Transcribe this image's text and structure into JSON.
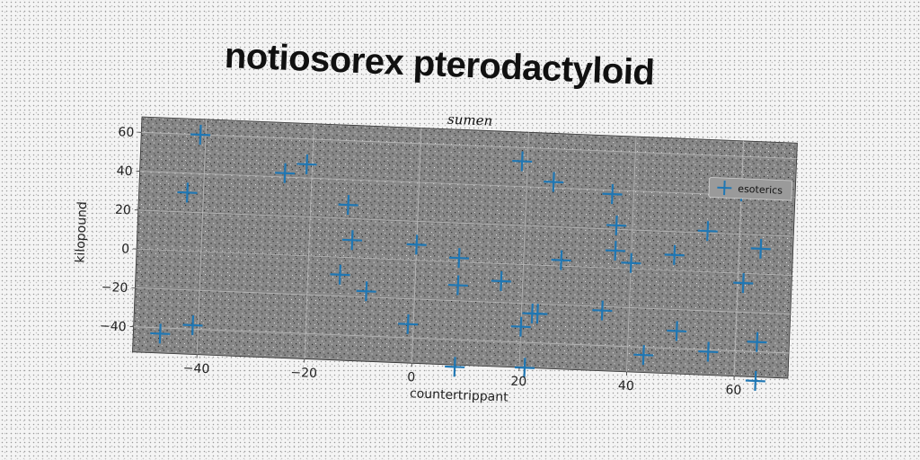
{
  "title": "notiosorex pterodactyloid",
  "chart_data": {
    "type": "scatter",
    "subtitle": "sumen",
    "xlabel": "countertrippant",
    "ylabel": "kilopound",
    "xlim": [
      -52,
      70
    ],
    "ylim": [
      -53,
      68
    ],
    "xticks": [
      -40,
      -20,
      0,
      20,
      40,
      60
    ],
    "yticks": [
      -40,
      -20,
      0,
      20,
      40,
      60
    ],
    "xtick_labels": [
      "−40",
      "−20",
      "0",
      "20",
      "40",
      "60"
    ],
    "ytick_labels": [
      "−40",
      "−20",
      "0",
      "20",
      "40",
      "60"
    ],
    "grid": true,
    "legend": "top-right",
    "series": [
      {
        "name": "esoterics",
        "color": "#1f77b4",
        "marker": "plus",
        "points": [
          [
            -41,
            60
          ],
          [
            -43,
            30
          ],
          [
            -25,
            42
          ],
          [
            -21,
            47
          ],
          [
            -13,
            27
          ],
          [
            -12,
            9
          ],
          [
            -14,
            -9
          ],
          [
            -9,
            -17
          ],
          [
            -47,
            -43
          ],
          [
            -41,
            -38
          ],
          [
            0,
            8
          ],
          [
            -1,
            -33
          ],
          [
            8,
            -12
          ],
          [
            8,
            2
          ],
          [
            8,
            -54
          ],
          [
            16,
            -9
          ],
          [
            19,
            53
          ],
          [
            20,
            -32
          ],
          [
            22,
            -25
          ],
          [
            23,
            -25
          ],
          [
            25,
            43
          ],
          [
            21,
            -53
          ],
          [
            27,
            3
          ],
          [
            36,
            38
          ],
          [
            37,
            22
          ],
          [
            37,
            9
          ],
          [
            40,
            3
          ],
          [
            35,
            -22
          ],
          [
            43,
            -44
          ],
          [
            48,
            8
          ],
          [
            49,
            -31
          ],
          [
            55,
            -41
          ],
          [
            54,
            21
          ],
          [
            60,
            42
          ],
          [
            61,
            -5
          ],
          [
            64,
            13
          ],
          [
            64,
            -35
          ],
          [
            64,
            -55
          ]
        ]
      }
    ]
  }
}
